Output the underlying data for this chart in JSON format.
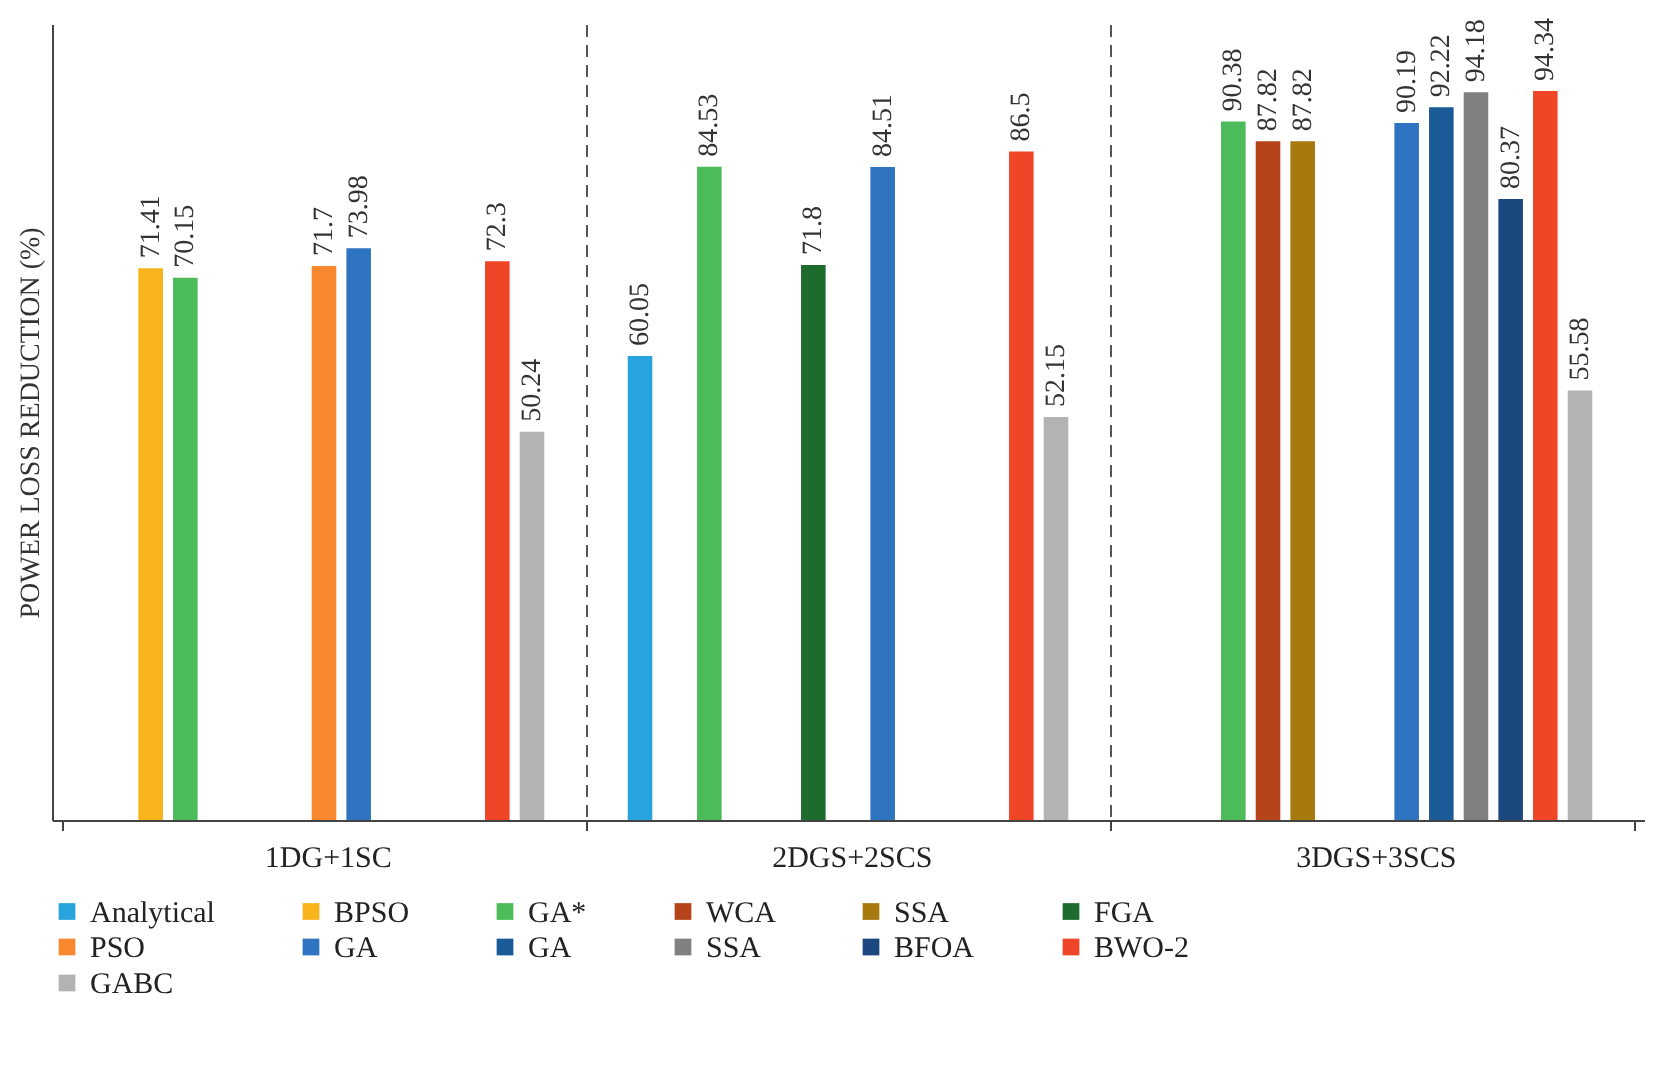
{
  "chart_data": {
    "type": "bar",
    "ylabel": "POWER LOSS REDUCTION (%)",
    "categories": [
      "1DG+1SC",
      "2DGS+2SCS",
      "3DGS+3SCS"
    ],
    "series": [
      {
        "name": "Analytical",
        "color": "#29a3dd",
        "values": [
          null,
          60.05,
          null
        ]
      },
      {
        "name": "BPSO",
        "color": "#f9b31b",
        "values": [
          71.41,
          null,
          null
        ]
      },
      {
        "name": "GA*",
        "color": "#4cbb5a",
        "values": [
          70.15,
          84.53,
          90.38
        ]
      },
      {
        "name": "WCA",
        "color": "#b5441a",
        "values": [
          null,
          null,
          87.82
        ]
      },
      {
        "name": "SSA",
        "color": "#a8790f",
        "values": [
          null,
          null,
          87.82
        ]
      },
      {
        "name": "FGA",
        "color": "#1e6b2e",
        "values": [
          null,
          71.8,
          null
        ]
      },
      {
        "name": "PSO",
        "color": "#f7882f",
        "values": [
          71.7,
          null,
          null
        ]
      },
      {
        "name": "GA",
        "color": "#2f74c0",
        "values": [
          73.98,
          84.51,
          90.19
        ]
      },
      {
        "name": "GA",
        "color": "#1a5a96",
        "values": [
          null,
          null,
          92.22
        ]
      },
      {
        "name": "SSA",
        "color": "#808080",
        "values": [
          null,
          null,
          94.18
        ]
      },
      {
        "name": "BFOA",
        "color": "#1b497f",
        "values": [
          null,
          null,
          80.37
        ]
      },
      {
        "name": "BWO-2",
        "color": "#ef4627",
        "values": [
          72.3,
          86.5,
          94.34
        ]
      },
      {
        "name": "GABC",
        "color": "#b3b3b3",
        "values": [
          50.24,
          52.15,
          55.58
        ]
      }
    ],
    "ylim": [
      0,
      103
    ],
    "data_labels": true,
    "grid": "x",
    "legend": "bottom",
    "tick_labels": "x"
  }
}
